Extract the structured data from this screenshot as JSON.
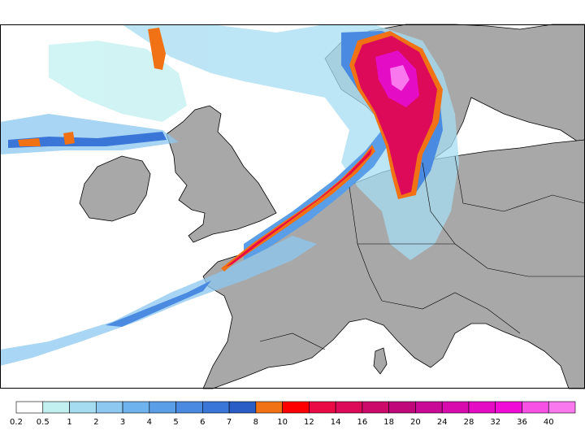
{
  "legend": {
    "bins": [
      {
        "color": "#ffffff"
      },
      {
        "color": "#c2f0f0"
      },
      {
        "color": "#a6dcf2"
      },
      {
        "color": "#8cc8f0"
      },
      {
        "color": "#6eb2ee"
      },
      {
        "color": "#5a9ee8"
      },
      {
        "color": "#4a8ae0"
      },
      {
        "color": "#3a76d8"
      },
      {
        "color": "#2a5ec6"
      },
      {
        "color": "#f07214"
      },
      {
        "color": "#ff0000"
      },
      {
        "color": "#ea0a46"
      },
      {
        "color": "#dc0a58"
      },
      {
        "color": "#cc0a6a"
      },
      {
        "color": "#c0087a"
      },
      {
        "color": "#c80a96"
      },
      {
        "color": "#d80cae"
      },
      {
        "color": "#e40cc4"
      },
      {
        "color": "#f00cd6"
      },
      {
        "color": "#f650e4"
      },
      {
        "color": "#fa78ee"
      }
    ],
    "tick_labels": [
      "0.2",
      "0.5",
      "1",
      "2",
      "3",
      "4",
      "5",
      "6",
      "7",
      "8",
      "10",
      "12",
      "14",
      "16",
      "18",
      "20",
      "24",
      "28",
      "32",
      "36",
      "40"
    ]
  },
  "colors": {
    "land": "#a8a8a8",
    "sea": "#ffffff",
    "coastline": "#000000"
  }
}
